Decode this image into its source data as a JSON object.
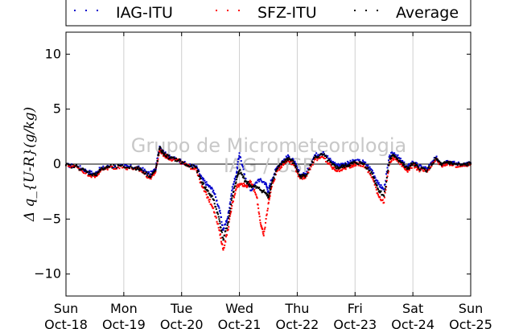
{
  "chart_data": {
    "type": "scatter",
    "ylabel": "Δ q_{U-R}(g/kg)",
    "ylim": [
      -12,
      12
    ],
    "yticks": [
      -10,
      -5,
      0,
      5,
      10
    ],
    "yticks_labels": [
      "−10",
      "−5",
      "0",
      "5",
      "10"
    ],
    "xlim": [
      "2015-10-18",
      "2015-10-25"
    ],
    "xticks": [
      {
        "day": "Sun",
        "date": "Oct-18"
      },
      {
        "day": "Mon",
        "date": "Oct-19"
      },
      {
        "day": "Tue",
        "date": "Oct-20"
      },
      {
        "day": "Wed",
        "date": "Oct-21"
      },
      {
        "day": "Thu",
        "date": "Oct-22"
      },
      {
        "day": "Fri",
        "date": "Oct-23"
      },
      {
        "day": "Sat",
        "date": "Oct-24"
      },
      {
        "day": "Sun",
        "date": "Oct-25"
      }
    ],
    "grid": "vertical",
    "legend_position": "top",
    "watermark": [
      "Grupo de Micrometeorologia",
      "IAG / USP"
    ],
    "series": [
      {
        "name": "IAG-ITU",
        "color": "#0000cc",
        "points": [
          [
            0.0,
            -0.1
          ],
          [
            0.2,
            -0.2
          ],
          [
            0.35,
            -0.6
          ],
          [
            0.5,
            -0.9
          ],
          [
            0.6,
            -0.4
          ],
          [
            0.75,
            -0.2
          ],
          [
            1.0,
            -0.2
          ],
          [
            1.2,
            -0.3
          ],
          [
            1.3,
            -0.4
          ],
          [
            1.45,
            -0.9
          ],
          [
            1.55,
            -0.5
          ],
          [
            1.62,
            1.6
          ],
          [
            1.7,
            1.0
          ],
          [
            1.8,
            0.6
          ],
          [
            1.95,
            0.4
          ],
          [
            2.1,
            -0.1
          ],
          [
            2.25,
            -0.2
          ],
          [
            2.35,
            -1.3
          ],
          [
            2.45,
            -1.9
          ],
          [
            2.55,
            -2.4
          ],
          [
            2.65,
            -4.0
          ],
          [
            2.72,
            -6.0
          ],
          [
            2.8,
            -4.8
          ],
          [
            2.87,
            -2.4
          ],
          [
            2.95,
            -0.8
          ],
          [
            3.0,
            1.0
          ],
          [
            3.1,
            -1.3
          ],
          [
            3.2,
            -2.4
          ],
          [
            3.33,
            -1.4
          ],
          [
            3.45,
            -1.7
          ],
          [
            3.5,
            -2.5
          ],
          [
            3.55,
            -1.5
          ],
          [
            3.65,
            -0.3
          ],
          [
            3.75,
            0.3
          ],
          [
            3.85,
            0.7
          ],
          [
            3.95,
            0.2
          ],
          [
            4.05,
            -1.0
          ],
          [
            4.15,
            -0.9
          ],
          [
            4.3,
            0.8
          ],
          [
            4.45,
            1.1
          ],
          [
            4.6,
            0.2
          ],
          [
            4.7,
            -0.1
          ],
          [
            4.8,
            0.0
          ],
          [
            4.9,
            0.1
          ],
          [
            5.0,
            0.3
          ],
          [
            5.15,
            0.2
          ],
          [
            5.3,
            -0.6
          ],
          [
            5.4,
            -1.8
          ],
          [
            5.5,
            -2.3
          ],
          [
            5.6,
            0.8
          ],
          [
            5.68,
            1.0
          ],
          [
            5.8,
            0.3
          ],
          [
            5.9,
            -0.3
          ],
          [
            6.0,
            0.2
          ],
          [
            6.1,
            -0.2
          ],
          [
            6.25,
            -0.4
          ],
          [
            6.4,
            0.6
          ],
          [
            6.5,
            0.0
          ],
          [
            6.6,
            0.3
          ],
          [
            6.7,
            0.1
          ],
          [
            6.85,
            0.0
          ],
          [
            7.0,
            0.1
          ]
        ]
      },
      {
        "name": "SFZ-ITU",
        "color": "#ff0000",
        "points": [
          [
            0.0,
            -0.1
          ],
          [
            0.2,
            -0.3
          ],
          [
            0.35,
            -0.8
          ],
          [
            0.5,
            -1.2
          ],
          [
            0.6,
            -0.6
          ],
          [
            0.75,
            -0.3
          ],
          [
            1.0,
            -0.3
          ],
          [
            1.2,
            -0.4
          ],
          [
            1.3,
            -0.6
          ],
          [
            1.45,
            -1.3
          ],
          [
            1.55,
            -0.7
          ],
          [
            1.62,
            1.3
          ],
          [
            1.7,
            0.8
          ],
          [
            1.8,
            0.5
          ],
          [
            1.95,
            0.3
          ],
          [
            2.1,
            -0.2
          ],
          [
            2.25,
            -0.4
          ],
          [
            2.35,
            -2.0
          ],
          [
            2.45,
            -3.0
          ],
          [
            2.55,
            -4.0
          ],
          [
            2.65,
            -6.0
          ],
          [
            2.72,
            -7.8
          ],
          [
            2.8,
            -6.0
          ],
          [
            2.87,
            -3.8
          ],
          [
            2.95,
            -2.0
          ],
          [
            3.05,
            -1.8
          ],
          [
            3.12,
            -2.0
          ],
          [
            3.2,
            -1.6
          ],
          [
            3.3,
            -3.0
          ],
          [
            3.37,
            -5.5
          ],
          [
            3.42,
            -6.5
          ],
          [
            3.5,
            -3.6
          ],
          [
            3.55,
            -2.2
          ],
          [
            3.65,
            -0.6
          ],
          [
            3.75,
            0.0
          ],
          [
            3.85,
            0.4
          ],
          [
            3.95,
            -0.1
          ],
          [
            4.05,
            -1.3
          ],
          [
            4.15,
            -1.1
          ],
          [
            4.3,
            0.4
          ],
          [
            4.45,
            0.6
          ],
          [
            4.6,
            -0.3
          ],
          [
            4.7,
            -0.6
          ],
          [
            4.8,
            -0.4
          ],
          [
            4.9,
            -0.2
          ],
          [
            5.0,
            0.0
          ],
          [
            5.15,
            -0.1
          ],
          [
            5.3,
            -1.2
          ],
          [
            5.4,
            -2.8
          ],
          [
            5.5,
            -3.5
          ],
          [
            5.6,
            0.2
          ],
          [
            5.68,
            0.6
          ],
          [
            5.8,
            0.0
          ],
          [
            5.9,
            -0.6
          ],
          [
            6.0,
            -0.1
          ],
          [
            6.1,
            -0.5
          ],
          [
            6.25,
            -0.7
          ],
          [
            6.4,
            0.4
          ],
          [
            6.5,
            -0.2
          ],
          [
            6.6,
            0.1
          ],
          [
            6.7,
            -0.1
          ],
          [
            6.85,
            -0.2
          ],
          [
            7.0,
            0.0
          ]
        ]
      },
      {
        "name": "Average",
        "color": "#000000",
        "points": [
          [
            0.0,
            -0.1
          ],
          [
            0.2,
            -0.25
          ],
          [
            0.35,
            -0.7
          ],
          [
            0.5,
            -1.0
          ],
          [
            0.6,
            -0.5
          ],
          [
            0.75,
            -0.25
          ],
          [
            1.0,
            -0.25
          ],
          [
            1.2,
            -0.35
          ],
          [
            1.3,
            -0.5
          ],
          [
            1.45,
            -1.1
          ],
          [
            1.55,
            -0.6
          ],
          [
            1.62,
            1.45
          ],
          [
            1.7,
            0.9
          ],
          [
            1.8,
            0.55
          ],
          [
            1.95,
            0.35
          ],
          [
            2.1,
            -0.15
          ],
          [
            2.25,
            -0.3
          ],
          [
            2.35,
            -1.65
          ],
          [
            2.45,
            -2.45
          ],
          [
            2.55,
            -3.2
          ],
          [
            2.65,
            -5.0
          ],
          [
            2.72,
            -6.9
          ],
          [
            2.8,
            -5.4
          ],
          [
            2.87,
            -3.1
          ],
          [
            2.95,
            -1.4
          ],
          [
            3.0,
            -0.6
          ],
          [
            3.1,
            -1.5
          ],
          [
            3.2,
            -2.0
          ],
          [
            3.33,
            -2.2
          ],
          [
            3.45,
            -2.6
          ],
          [
            3.5,
            -3.0
          ],
          [
            3.55,
            -1.85
          ],
          [
            3.65,
            -0.45
          ],
          [
            3.75,
            0.15
          ],
          [
            3.85,
            0.55
          ],
          [
            3.95,
            0.05
          ],
          [
            4.05,
            -1.15
          ],
          [
            4.15,
            -1.0
          ],
          [
            4.3,
            0.6
          ],
          [
            4.45,
            0.85
          ],
          [
            4.6,
            -0.05
          ],
          [
            4.7,
            -0.35
          ],
          [
            4.8,
            -0.2
          ],
          [
            4.9,
            -0.05
          ],
          [
            5.0,
            0.15
          ],
          [
            5.15,
            0.05
          ],
          [
            5.3,
            -0.9
          ],
          [
            5.4,
            -2.3
          ],
          [
            5.5,
            -2.9
          ],
          [
            5.6,
            0.5
          ],
          [
            5.68,
            0.8
          ],
          [
            5.8,
            0.15
          ],
          [
            5.9,
            -0.45
          ],
          [
            6.0,
            0.05
          ],
          [
            6.1,
            -0.35
          ],
          [
            6.25,
            -0.55
          ],
          [
            6.4,
            0.5
          ],
          [
            6.5,
            -0.1
          ],
          [
            6.6,
            0.2
          ],
          [
            6.7,
            0.0
          ],
          [
            6.85,
            -0.1
          ],
          [
            7.0,
            0.05
          ]
        ]
      }
    ]
  }
}
